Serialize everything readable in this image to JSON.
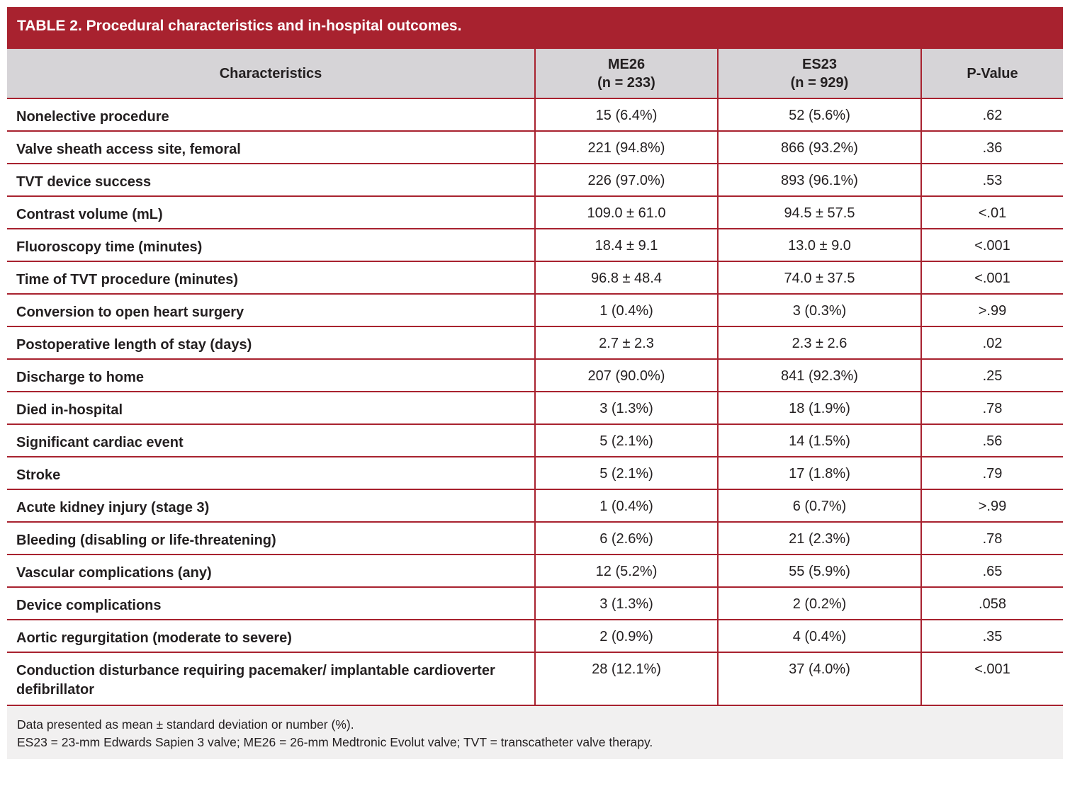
{
  "header": {
    "title": "TABLE 2. Procedural characteristics and in-hospital outcomes."
  },
  "table": {
    "columns": [
      {
        "name": "Characteristics"
      },
      {
        "name": "ME26",
        "n": "(n = 233)"
      },
      {
        "name": "ES23",
        "n": "(n = 929)"
      },
      {
        "name": "P-Value"
      }
    ],
    "rows": [
      [
        "Nonelective procedure",
        "15 (6.4%)",
        "52 (5.6%)",
        ".62"
      ],
      [
        "Valve sheath access site, femoral",
        "221 (94.8%)",
        "866 (93.2%)",
        ".36"
      ],
      [
        "TVT device success",
        "226 (97.0%)",
        "893 (96.1%)",
        ".53"
      ],
      [
        "Contrast volume (mL)",
        "109.0 ± 61.0",
        "94.5 ± 57.5",
        "<.01"
      ],
      [
        "Fluoroscopy time (minutes)",
        "18.4 ± 9.1",
        "13.0 ± 9.0",
        "<.001"
      ],
      [
        "Time of TVT procedure (minutes)",
        "96.8 ± 48.4",
        "74.0 ± 37.5",
        "<.001"
      ],
      [
        "Conversion to open heart surgery",
        "1 (0.4%)",
        "3 (0.3%)",
        ">.99"
      ],
      [
        "Postoperative length of stay (days)",
        "2.7 ± 2.3",
        "2.3 ± 2.6",
        ".02"
      ],
      [
        "Discharge to home",
        "207 (90.0%)",
        "841 (92.3%)",
        ".25"
      ],
      [
        "Died in-hospital",
        "3 (1.3%)",
        "18 (1.9%)",
        ".78"
      ],
      [
        "Significant cardiac event",
        "5 (2.1%)",
        "14 (1.5%)",
        ".56"
      ],
      [
        "Stroke",
        "5 (2.1%)",
        "17 (1.8%)",
        ".79"
      ],
      [
        "Acute kidney injury (stage 3)",
        "1 (0.4%)",
        "6 (0.7%)",
        ">.99"
      ],
      [
        "Bleeding (disabling or life-threatening)",
        "6 (2.6%)",
        "21 (2.3%)",
        ".78"
      ],
      [
        "Vascular complications (any)",
        "12 (5.2%)",
        "55 (5.9%)",
        ".65"
      ],
      [
        "Device complications",
        "3 (1.3%)",
        "2 (0.2%)",
        ".058"
      ],
      [
        "Aortic regurgitation (moderate to severe)",
        "2 (0.9%)",
        "4 (0.4%)",
        ".35"
      ],
      [
        "Conduction disturbance requiring pacemaker/ implantable cardioverter defibrillator",
        "28 (12.1%)",
        "37 (4.0%)",
        "<.001"
      ]
    ]
  },
  "footnotes": [
    "Data presented as mean ± standard deviation or number (%).",
    "ES23 = 23-mm Edwards Sapien 3 valve; ME26 = 26-mm Medtronic Evolut valve; TVT = transcatheter valve therapy."
  ]
}
